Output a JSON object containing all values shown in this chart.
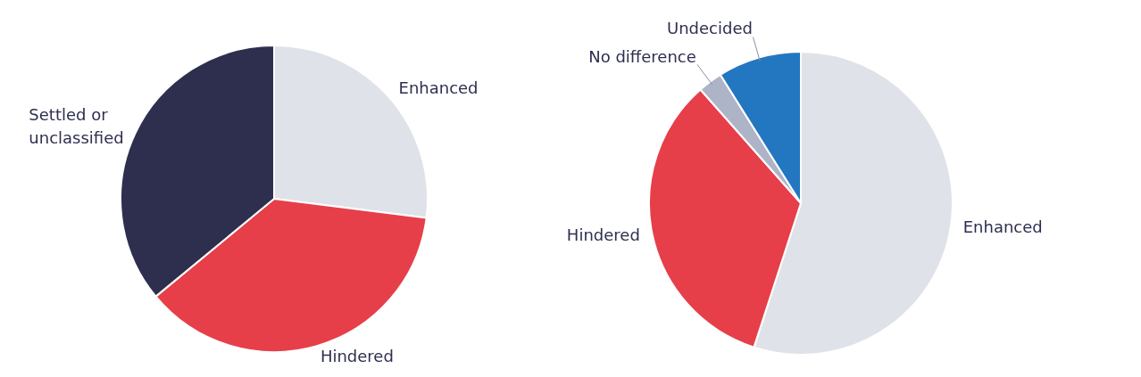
{
  "chart_data": [
    {
      "type": "pie",
      "categories": [
        "Enhanced",
        "Hindered",
        "Settled or unclassified"
      ],
      "values": [
        27,
        37,
        36
      ],
      "colors": [
        "#dfe2e8",
        "#e63f4a",
        "#2e2f4f"
      ]
    },
    {
      "type": "pie",
      "categories": [
        "Enhanced",
        "Hindered",
        "No difference",
        "Undecided"
      ],
      "values": [
        55,
        33.5,
        2.6,
        8.9
      ],
      "colors": [
        "#dfe2e8",
        "#e63f4a",
        "#aeb4c7",
        "#2277c0"
      ]
    }
  ]
}
